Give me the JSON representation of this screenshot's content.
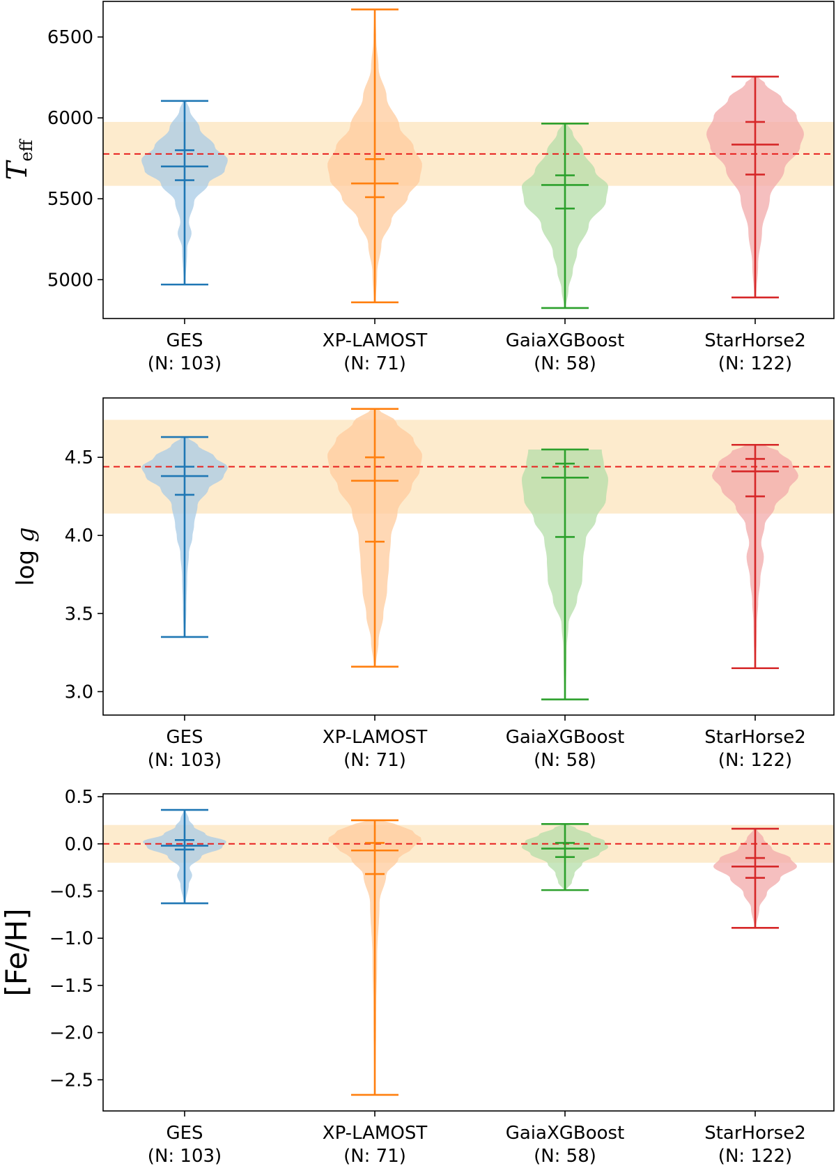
{
  "chart_data": [
    {
      "type": "violin",
      "ylabel": "T",
      "ylabel_sub": "eff",
      "ylim": [
        4760,
        6720
      ],
      "yticks": [
        5000,
        5500,
        6000,
        6500
      ],
      "ytick_labels": [
        "5000",
        "5500",
        "6000",
        "6500"
      ],
      "reference_value": 5777,
      "reference_band": [
        5580,
        5975
      ],
      "categories": [
        "GES",
        "XP-LAMOST",
        "GaiaXGBoost",
        "StarHorse2"
      ],
      "counts": [
        "(N: 103)",
        "(N: 71)",
        "(N: 58)",
        "(N: 122)"
      ],
      "series": [
        {
          "name": "GES",
          "color": "#1f77b4",
          "fill": "#a8cbe6",
          "min": 4970,
          "max": 6105,
          "median": 5700,
          "q1": 5615,
          "q3": 5800
        },
        {
          "name": "XP-LAMOST",
          "color": "#ff7f0e",
          "fill": "#ffcb9c",
          "min": 4860,
          "max": 6670,
          "median": 5595,
          "q1": 5510,
          "q3": 5745
        },
        {
          "name": "GaiaXGBoost",
          "color": "#2ca02c",
          "fill": "#b4dda8",
          "min": 4825,
          "max": 5965,
          "median": 5585,
          "q1": 5440,
          "q3": 5645
        },
        {
          "name": "StarHorse2",
          "color": "#d62728",
          "fill": "#f1a9a9",
          "min": 4890,
          "max": 6255,
          "median": 5835,
          "q1": 5650,
          "q3": 5975
        }
      ]
    },
    {
      "type": "violin",
      "ylabel": "log ",
      "ylabel_italic": "g",
      "ylim": [
        2.85,
        4.88
      ],
      "yticks": [
        3.0,
        3.5,
        4.0,
        4.5
      ],
      "ytick_labels": [
        "3.0",
        "3.5",
        "4.0",
        "4.5"
      ],
      "reference_value": 4.44,
      "reference_band": [
        4.14,
        4.74
      ],
      "categories": [
        "GES",
        "XP-LAMOST",
        "GaiaXGBoost",
        "StarHorse2"
      ],
      "counts": [
        "(N: 103)",
        "(N: 71)",
        "(N: 58)",
        "(N: 122)"
      ],
      "series": [
        {
          "name": "GES",
          "color": "#1f77b4",
          "fill": "#a8cbe6",
          "min": 3.35,
          "max": 4.63,
          "median": 4.38,
          "q1": 4.26,
          "q3": 4.44
        },
        {
          "name": "XP-LAMOST",
          "color": "#ff7f0e",
          "fill": "#ffcb9c",
          "min": 3.16,
          "max": 4.81,
          "median": 4.35,
          "q1": 3.96,
          "q3": 4.5
        },
        {
          "name": "GaiaXGBoost",
          "color": "#2ca02c",
          "fill": "#b4dda8",
          "min": 2.95,
          "max": 4.55,
          "median": 4.37,
          "q1": 3.99,
          "q3": 4.46
        },
        {
          "name": "StarHorse2",
          "color": "#d62728",
          "fill": "#f1a9a9",
          "min": 3.15,
          "max": 4.58,
          "median": 4.41,
          "q1": 4.25,
          "q3": 4.49
        }
      ]
    },
    {
      "type": "violin",
      "ylabel": "[Fe/H]",
      "ylim": [
        -2.83,
        0.53
      ],
      "yticks": [
        -2.5,
        -2.0,
        -1.5,
        -1.0,
        -0.5,
        0.0,
        0.5
      ],
      "ytick_labels": [
        "−2.5",
        "−2.0",
        "−1.5",
        "−1.0",
        "−0.5",
        "0.0",
        "0.5"
      ],
      "reference_value": 0.0,
      "reference_band": [
        -0.2,
        0.2
      ],
      "categories": [
        "GES",
        "XP-LAMOST",
        "GaiaXGBoost",
        "StarHorse2"
      ],
      "counts": [
        "(N: 103)",
        "(N: 71)",
        "(N: 58)",
        "(N: 122)"
      ],
      "series": [
        {
          "name": "GES",
          "color": "#1f77b4",
          "fill": "#a8cbe6",
          "min": -0.63,
          "max": 0.36,
          "median": -0.02,
          "q1": -0.06,
          "q3": 0.04
        },
        {
          "name": "XP-LAMOST",
          "color": "#ff7f0e",
          "fill": "#ffcb9c",
          "min": -2.66,
          "max": 0.25,
          "median": -0.07,
          "q1": -0.32,
          "q3": 0.01
        },
        {
          "name": "GaiaXGBoost",
          "color": "#2ca02c",
          "fill": "#b4dda8",
          "min": -0.49,
          "max": 0.21,
          "median": -0.05,
          "q1": -0.14,
          "q3": 0.01
        },
        {
          "name": "StarHorse2",
          "color": "#d62728",
          "fill": "#f1a9a9",
          "min": -0.89,
          "max": 0.16,
          "median": -0.24,
          "q1": -0.36,
          "q3": -0.15
        }
      ]
    }
  ]
}
